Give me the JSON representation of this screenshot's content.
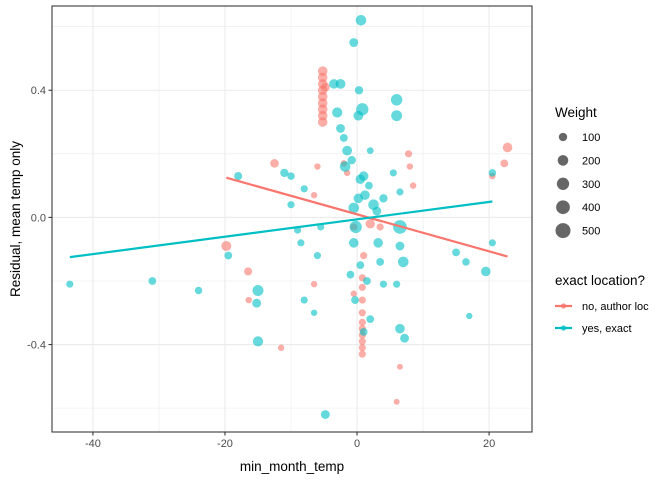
{
  "chart_data": {
    "type": "scatter",
    "title": "",
    "xlabel": "min_month_temp",
    "ylabel": "Residual, mean temp only",
    "xlim": [
      -46.2,
      26.5
    ],
    "ylim": [
      -0.675,
      0.665
    ],
    "x_ticks": [
      -40,
      -20,
      0,
      20
    ],
    "x_tick_labels": [
      "-40",
      "-20",
      "0",
      "20"
    ],
    "y_ticks": [
      -0.4,
      0.0,
      0.4
    ],
    "y_tick_labels": [
      "-0.4",
      "0.0",
      "0.4"
    ],
    "grid": true,
    "legend_position": "right",
    "size_legend": {
      "title": "Weight",
      "entries": [
        {
          "label": "100",
          "value": 100
        },
        {
          "label": "200",
          "value": 200
        },
        {
          "label": "300",
          "value": 300
        },
        {
          "label": "400",
          "value": 400
        },
        {
          "label": "500",
          "value": 500
        }
      ]
    },
    "color_legend": {
      "title": "exact location?",
      "entries": [
        {
          "label": "no, author loc",
          "color": "#F8766D"
        },
        {
          "label": "yes, exact",
          "color": "#00BFC4"
        }
      ]
    },
    "series": [
      {
        "name": "no, author loc",
        "color": "#F8766D",
        "trend": {
          "x": [
            -19.8,
            22.8
          ],
          "y": [
            0.125,
            -0.123
          ]
        },
        "points": [
          {
            "x": -5.2,
            "y": 0.46,
            "w": 150
          },
          {
            "x": -5.2,
            "y": 0.44,
            "w": 150
          },
          {
            "x": -5.2,
            "y": 0.42,
            "w": 150
          },
          {
            "x": -5.2,
            "y": 0.4,
            "w": 150
          },
          {
            "x": -5.2,
            "y": 0.38,
            "w": 150
          },
          {
            "x": -5.2,
            "y": 0.36,
            "w": 150
          },
          {
            "x": -5.2,
            "y": 0.34,
            "w": 150
          },
          {
            "x": -5.2,
            "y": 0.32,
            "w": 150
          },
          {
            "x": -5.2,
            "y": 0.3,
            "w": 150
          },
          {
            "x": -4.8,
            "y": 0.41,
            "w": 120
          },
          {
            "x": -19.8,
            "y": -0.09,
            "w": 170
          },
          {
            "x": -12.5,
            "y": 0.17,
            "w": 110
          },
          {
            "x": -16.5,
            "y": -0.17,
            "w": 90
          },
          {
            "x": -16.4,
            "y": -0.26,
            "w": 40
          },
          {
            "x": -11.5,
            "y": -0.41,
            "w": 40
          },
          {
            "x": -6.5,
            "y": -0.21,
            "w": 40
          },
          {
            "x": -2.0,
            "y": 0.17,
            "w": 40
          },
          {
            "x": -6.0,
            "y": 0.16,
            "w": 40
          },
          {
            "x": -6.5,
            "y": 0.07,
            "w": 40
          },
          {
            "x": -0.5,
            "y": -0.03,
            "w": 60
          },
          {
            "x": 1.0,
            "y": -0.12,
            "w": 60
          },
          {
            "x": 2.0,
            "y": -0.02,
            "w": 140
          },
          {
            "x": 3.5,
            "y": -0.03,
            "w": 60
          },
          {
            "x": -1.5,
            "y": 0.14,
            "w": 40
          },
          {
            "x": 0.8,
            "y": -0.19,
            "w": 60
          },
          {
            "x": 0.8,
            "y": -0.22,
            "w": 60
          },
          {
            "x": 0.8,
            "y": -0.26,
            "w": 60
          },
          {
            "x": 0.8,
            "y": -0.3,
            "w": 60
          },
          {
            "x": 0.8,
            "y": -0.33,
            "w": 60
          },
          {
            "x": 0.8,
            "y": -0.35,
            "w": 60
          },
          {
            "x": 0.8,
            "y": -0.37,
            "w": 60
          },
          {
            "x": 0.8,
            "y": -0.39,
            "w": 60
          },
          {
            "x": 0.8,
            "y": -0.41,
            "w": 60
          },
          {
            "x": 0.8,
            "y": -0.43,
            "w": 60
          },
          {
            "x": -0.5,
            "y": -0.24,
            "w": 40
          },
          {
            "x": 6.5,
            "y": -0.47,
            "w": 30
          },
          {
            "x": 6.0,
            "y": -0.58,
            "w": 30
          },
          {
            "x": 7.8,
            "y": 0.2,
            "w": 60
          },
          {
            "x": 8.0,
            "y": 0.16,
            "w": 40
          },
          {
            "x": 8.5,
            "y": 0.1,
            "w": 40
          },
          {
            "x": 22.8,
            "y": 0.22,
            "w": 150
          },
          {
            "x": 22.3,
            "y": 0.17,
            "w": 80
          },
          {
            "x": 20.5,
            "y": 0.13,
            "w": 40
          }
        ]
      },
      {
        "name": "yes, exact",
        "color": "#00BFC4",
        "trend": {
          "x": [
            -43.5,
            20.5
          ],
          "y": [
            -0.125,
            0.05
          ]
        },
        "points": [
          {
            "x": -43.5,
            "y": -0.21,
            "w": 60
          },
          {
            "x": -31.0,
            "y": -0.2,
            "w": 80
          },
          {
            "x": -24.0,
            "y": -0.23,
            "w": 70
          },
          {
            "x": -19.5,
            "y": -0.12,
            "w": 80
          },
          {
            "x": -18.0,
            "y": 0.13,
            "w": 90
          },
          {
            "x": -15.0,
            "y": -0.23,
            "w": 220
          },
          {
            "x": -15.0,
            "y": -0.39,
            "w": 180
          },
          {
            "x": -15.2,
            "y": -0.27,
            "w": 120
          },
          {
            "x": -11.0,
            "y": 0.14,
            "w": 100
          },
          {
            "x": -10.0,
            "y": 0.13,
            "w": 70
          },
          {
            "x": -10.0,
            "y": 0.04,
            "w": 60
          },
          {
            "x": -9.0,
            "y": -0.04,
            "w": 60
          },
          {
            "x": -8.0,
            "y": 0.09,
            "w": 60
          },
          {
            "x": -8.5,
            "y": -0.08,
            "w": 60
          },
          {
            "x": -8.0,
            "y": -0.26,
            "w": 60
          },
          {
            "x": -5.5,
            "y": -0.03,
            "w": 60
          },
          {
            "x": -6.0,
            "y": -0.12,
            "w": 60
          },
          {
            "x": -6.5,
            "y": -0.3,
            "w": 40
          },
          {
            "x": -4.8,
            "y": -0.62,
            "w": 120
          },
          {
            "x": -3.5,
            "y": 0.42,
            "w": 150
          },
          {
            "x": -2.5,
            "y": 0.42,
            "w": 160
          },
          {
            "x": -3.0,
            "y": 0.33,
            "w": 180
          },
          {
            "x": -2.5,
            "y": 0.28,
            "w": 120
          },
          {
            "x": -2.0,
            "y": 0.25,
            "w": 80
          },
          {
            "x": -1.5,
            "y": 0.21,
            "w": 160
          },
          {
            "x": -1.8,
            "y": 0.16,
            "w": 200
          },
          {
            "x": -0.5,
            "y": 0.55,
            "w": 120
          },
          {
            "x": 0.6,
            "y": 0.62,
            "w": 200
          },
          {
            "x": -0.8,
            "y": 0.18,
            "w": 100
          },
          {
            "x": 0.2,
            "y": 0.32,
            "w": 160
          },
          {
            "x": 0.3,
            "y": 0.4,
            "w": 100
          },
          {
            "x": 0.8,
            "y": 0.34,
            "w": 300
          },
          {
            "x": 0.5,
            "y": 0.12,
            "w": 150
          },
          {
            "x": 1.0,
            "y": 0.13,
            "w": 150
          },
          {
            "x": 1.2,
            "y": 0.07,
            "w": 150
          },
          {
            "x": 1.8,
            "y": 0.1,
            "w": 80
          },
          {
            "x": 2.0,
            "y": 0.21,
            "w": 50
          },
          {
            "x": -0.5,
            "y": 0.03,
            "w": 200
          },
          {
            "x": 0.2,
            "y": 0.06,
            "w": 150
          },
          {
            "x": -0.2,
            "y": -0.03,
            "w": 300
          },
          {
            "x": -0.5,
            "y": -0.08,
            "w": 150
          },
          {
            "x": -1.0,
            "y": -0.18,
            "w": 80
          },
          {
            "x": -0.3,
            "y": -0.26,
            "w": 80
          },
          {
            "x": 0.5,
            "y": -0.15,
            "w": 80
          },
          {
            "x": 1.5,
            "y": -0.2,
            "w": 80
          },
          {
            "x": 1.0,
            "y": -0.36,
            "w": 80
          },
          {
            "x": 2.0,
            "y": -0.32,
            "w": 80
          },
          {
            "x": 2.5,
            "y": 0.04,
            "w": 200
          },
          {
            "x": 3.0,
            "y": 0.02,
            "w": 120
          },
          {
            "x": 4.0,
            "y": 0.06,
            "w": 100
          },
          {
            "x": 3.2,
            "y": -0.08,
            "w": 150
          },
          {
            "x": 3.5,
            "y": -0.14,
            "w": 80
          },
          {
            "x": 4.0,
            "y": -0.21,
            "w": 60
          },
          {
            "x": 6.0,
            "y": 0.37,
            "w": 250
          },
          {
            "x": 6.0,
            "y": 0.32,
            "w": 220
          },
          {
            "x": 5.5,
            "y": 0.14,
            "w": 60
          },
          {
            "x": 6.5,
            "y": 0.08,
            "w": 60
          },
          {
            "x": 6.5,
            "y": -0.03,
            "w": 400
          },
          {
            "x": 6.5,
            "y": -0.09,
            "w": 120
          },
          {
            "x": 7.0,
            "y": -0.14,
            "w": 200
          },
          {
            "x": 6.0,
            "y": -0.21,
            "w": 60
          },
          {
            "x": 6.5,
            "y": -0.35,
            "w": 150
          },
          {
            "x": 7.2,
            "y": -0.38,
            "w": 120
          },
          {
            "x": 15.0,
            "y": -0.11,
            "w": 80
          },
          {
            "x": 16.5,
            "y": -0.14,
            "w": 70
          },
          {
            "x": 19.5,
            "y": -0.17,
            "w": 150
          },
          {
            "x": 20.5,
            "y": 0.14,
            "w": 70
          },
          {
            "x": 20.5,
            "y": -0.08,
            "w": 60
          },
          {
            "x": 17.0,
            "y": -0.31,
            "w": 40
          }
        ]
      }
    ]
  }
}
